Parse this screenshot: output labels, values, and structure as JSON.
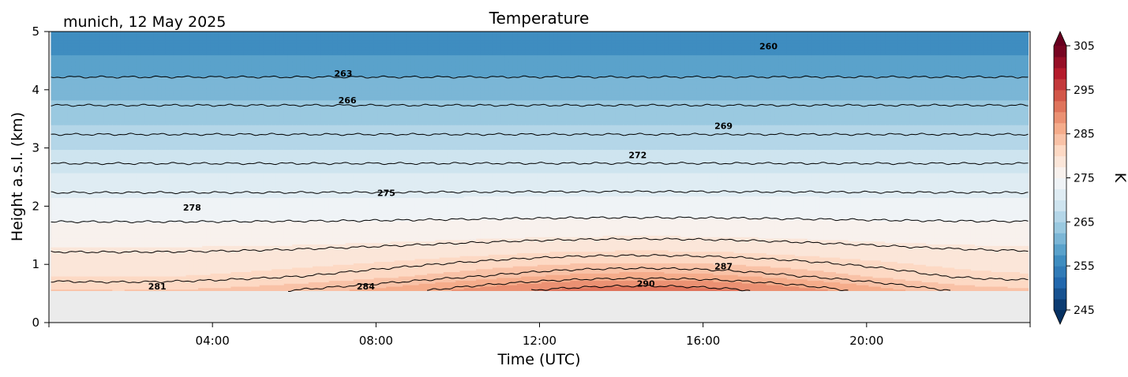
{
  "chart_data": {
    "type": "heatmap",
    "title": "Temperature",
    "location_date": "munich, 12 May 2025",
    "xlabel": "Time (UTC)",
    "ylabel": "Height a.s.l. (km)",
    "xlim": [
      0,
      24
    ],
    "ylim": [
      0,
      5
    ],
    "xticks": [
      {
        "value": 4,
        "label": "04:00"
      },
      {
        "value": 8,
        "label": "08:00"
      },
      {
        "value": 12,
        "label": "12:00"
      },
      {
        "value": 16,
        "label": "16:00"
      },
      {
        "value": 20,
        "label": "20:00"
      }
    ],
    "yticks": [
      {
        "value": 0,
        "label": "0"
      },
      {
        "value": 1,
        "label": "1"
      },
      {
        "value": 2,
        "label": "2"
      },
      {
        "value": 3,
        "label": "3"
      },
      {
        "value": 4,
        "label": "4"
      },
      {
        "value": 5,
        "label": "5"
      }
    ],
    "data_time_range": [
      0.05,
      23.95
    ],
    "data_height_range": [
      0.55,
      5.0
    ],
    "no_data_color": "#ebebeb",
    "contour_levels": [
      260,
      263,
      266,
      269,
      272,
      275,
      278,
      281,
      284,
      287,
      290
    ],
    "contour_labels": [
      {
        "level": "260",
        "x": 17.6,
        "y": 4.75
      },
      {
        "level": "263",
        "x": 7.2,
        "y": 4.28
      },
      {
        "level": "266",
        "x": 7.3,
        "y": 3.82
      },
      {
        "level": "269",
        "x": 16.5,
        "y": 3.38
      },
      {
        "level": "272",
        "x": 14.4,
        "y": 2.88
      },
      {
        "level": "275",
        "x": 8.25,
        "y": 2.23
      },
      {
        "level": "278",
        "x": 3.5,
        "y": 1.98
      },
      {
        "level": "281",
        "x": 2.65,
        "y": 0.62
      },
      {
        "level": "284",
        "x": 7.75,
        "y": 0.62
      },
      {
        "level": "287",
        "x": 16.5,
        "y": 0.97
      },
      {
        "level": "290",
        "x": 14.6,
        "y": 0.67
      }
    ],
    "colorbar": {
      "label": "K",
      "min": 245,
      "max": 305,
      "ticks": [
        "245",
        "255",
        "265",
        "275",
        "285",
        "295",
        "305"
      ],
      "extend": "both"
    },
    "colormap": "RdBu_r"
  }
}
